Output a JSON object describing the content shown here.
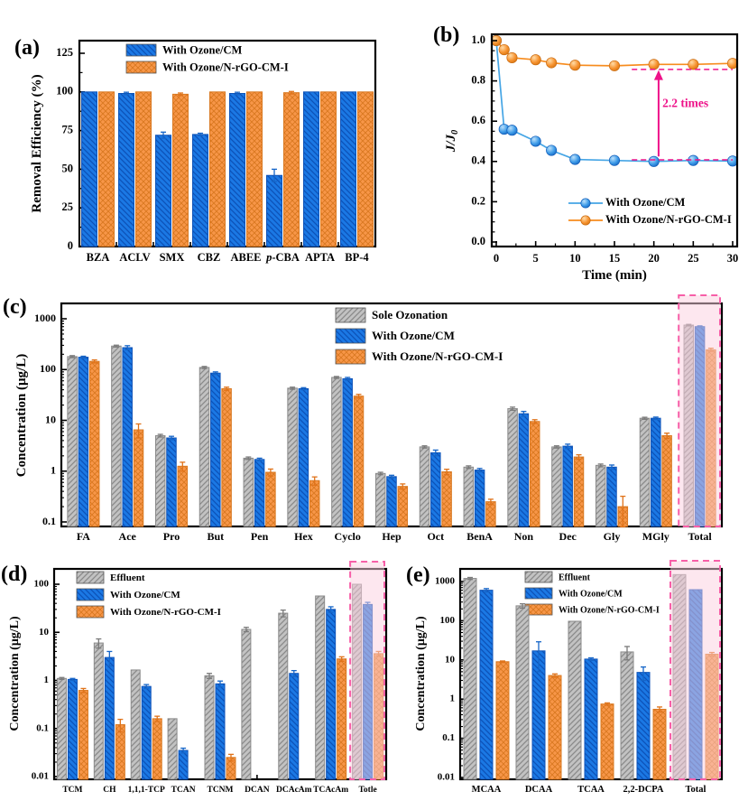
{
  "figure": {
    "colors": {
      "blue": "#1B78E4",
      "blue_hatch": "#0C52B8",
      "blue_line": "#45A5E5",
      "orange": "#F79648",
      "orange_hatch": "#D97820",
      "orange_line": "#F78C1E",
      "gray": "#C2C2C2",
      "gray_hatch": "#8A8A8A",
      "magenta": "#EE1289",
      "highlight_fill": "#FBCFE0",
      "highlight_border": "#F75FA8",
      "axis": "#000000"
    }
  },
  "chart_data": [
    {
      "panel": "a",
      "label": "(a)",
      "type": "bar",
      "yscale": "linear",
      "ylabel": "Removal Efficiency (%)",
      "yticks": [
        0,
        25,
        50,
        75,
        100,
        125
      ],
      "ytick_labels": [
        "0",
        "25",
        "50",
        "75",
        "100",
        "125"
      ],
      "ylim": [
        0,
        133
      ],
      "categories": [
        "BZA",
        "ACLV",
        "SMX",
        "CBZ",
        "ABEE",
        "p-CBA",
        "APTA",
        "BP-4"
      ],
      "series": [
        {
          "name": "With Ozone/CM",
          "color_key": "blue",
          "values": [
            100,
            99,
            72,
            72.5,
            99,
            46,
            100,
            100
          ],
          "errors": [
            0,
            0.8,
            2,
            0.8,
            0.8,
            4,
            0,
            0
          ]
        },
        {
          "name": "With Ozone/N-rGO-CM-I",
          "color_key": "orange",
          "values": [
            100,
            100,
            98.5,
            100,
            100,
            99.5,
            100,
            100
          ],
          "errors": [
            0,
            0,
            0.8,
            0,
            0,
            0.8,
            0,
            0
          ]
        }
      ]
    },
    {
      "panel": "b",
      "label": "(b)",
      "type": "line",
      "xlabel": "Time (min)",
      "ylabel": "J/J0",
      "xticks": [
        0,
        5,
        10,
        15,
        20,
        25,
        30
      ],
      "xtick_labels": [
        "0",
        "5",
        "10",
        "15",
        "20",
        "25",
        "30"
      ],
      "yticks": [
        0.0,
        0.2,
        0.4,
        0.6,
        0.8,
        1.0
      ],
      "ytick_labels": [
        "0.0",
        "0.2",
        "0.4",
        "0.6",
        "0.8",
        "1.0"
      ],
      "x": [
        0,
        1,
        2,
        5,
        7,
        10,
        15,
        20,
        25,
        30
      ],
      "series": [
        {
          "name": "With Ozone/CM",
          "color_key": "blue",
          "y": [
            1.0,
            0.56,
            0.555,
            0.5,
            0.455,
            0.41,
            0.405,
            0.4,
            0.405,
            0.402
          ]
        },
        {
          "name": "With Ozone/N-rGO-CM-I",
          "color_key": "orange",
          "y": [
            1.0,
            0.955,
            0.915,
            0.905,
            0.89,
            0.878,
            0.875,
            0.882,
            0.882,
            0.887
          ]
        }
      ],
      "annotation": {
        "text": "2.2 times",
        "text_t": 24.0,
        "text_j": 0.67,
        "arrow_t": 20.6,
        "arrow_j1": 0.425,
        "arrow_j2": 0.845,
        "dash_top_j": 0.857,
        "dash_bottom_j": 0.408,
        "dash_t1": 17.2,
        "dash_t2": 30
      }
    },
    {
      "panel": "c",
      "label": "(c)",
      "type": "bar",
      "yscale": "log",
      "ylabel": "Concentration (μg/L)",
      "yticks": [
        0.1,
        1,
        10,
        100,
        1000
      ],
      "ytick_labels": [
        "0.1",
        "1",
        "10",
        "100",
        "1000"
      ],
      "categories": [
        "FA",
        "Ace",
        "Pro",
        "But",
        "Pen",
        "Hex",
        "Cyclo",
        "Hep",
        "Oct",
        "BenA",
        "Non",
        "Dec",
        "Gly",
        "MGly",
        "Total"
      ],
      "highlight_category": "Total",
      "series": [
        {
          "name": "Sole Ozonation",
          "color_key": "gray",
          "values": [
            180,
            290,
            5.0,
            110,
            1.8,
            43,
            70,
            0.9,
            3.0,
            1.2,
            17,
            3.0,
            1.3,
            11,
            750
          ],
          "errors": [
            8,
            12,
            0.3,
            5,
            0.1,
            2,
            3,
            0.05,
            0.15,
            0.07,
            1.2,
            0.15,
            0.08,
            0.5,
            25
          ]
        },
        {
          "name": "With Ozone/CM",
          "color_key": "blue",
          "values": [
            175,
            270,
            4.5,
            85,
            1.7,
            42,
            66,
            0.78,
            2.3,
            1.05,
            13.5,
            3.1,
            1.2,
            11,
            700
          ],
          "errors": [
            8,
            25,
            0.35,
            5,
            0.1,
            2,
            4,
            0.05,
            0.3,
            0.08,
            1.5,
            0.3,
            0.12,
            0.6,
            25
          ]
        },
        {
          "name": "With Ozone/N-rGO-CM-I",
          "color_key": "orange",
          "values": [
            145,
            6.5,
            1.25,
            42,
            0.95,
            0.65,
            30,
            0.5,
            0.97,
            0.25,
            9.5,
            1.9,
            0.2,
            5.0,
            245
          ],
          "errors": [
            10,
            2.0,
            0.25,
            3,
            0.15,
            0.12,
            2.5,
            0.06,
            0.12,
            0.03,
            0.8,
            0.2,
            0.12,
            0.6,
            18
          ]
        }
      ]
    },
    {
      "panel": "d",
      "label": "(d)",
      "type": "bar",
      "yscale": "log",
      "ylabel": "Concentration (μg/L)",
      "yticks": [
        0.01,
        0.1,
        1,
        10,
        100
      ],
      "ytick_labels": [
        "0.01",
        "0.1",
        "1",
        "10",
        "100"
      ],
      "categories": [
        "TCM",
        "CH",
        "1,1,1-TCP",
        "TCAN",
        "TCNM",
        "DCAN",
        "DCAcAm",
        "TCAcAm",
        "Totle"
      ],
      "highlight_category": "Totle",
      "series": [
        {
          "name": "Effluent",
          "color_key": "gray",
          "values": [
            1.1,
            6.0,
            1.65,
            0.16,
            1.25,
            11.5,
            25,
            57,
            100
          ],
          "errors": [
            0.05,
            1.3,
            0,
            0,
            0.15,
            1.2,
            4,
            0,
            0
          ]
        },
        {
          "name": "With Ozone/CM",
          "color_key": "blue",
          "values": [
            1.05,
            3.0,
            0.75,
            0.035,
            0.85,
            0,
            1.4,
            30,
            38
          ],
          "errors": [
            0.05,
            1.0,
            0.07,
            0.004,
            0.12,
            0,
            0.2,
            4,
            4
          ]
        },
        {
          "name": "With Ozone/N-rGO-CM-I",
          "color_key": "orange",
          "values": [
            0.62,
            0.12,
            0.16,
            0,
            0.025,
            0,
            0,
            2.8,
            3.6
          ],
          "errors": [
            0.06,
            0.035,
            0.02,
            0,
            0.004,
            0,
            0,
            0.3,
            0.4
          ]
        }
      ]
    },
    {
      "panel": "e",
      "label": "(e)",
      "type": "bar",
      "yscale": "log",
      "ylabel": "Concentration (μg/L)",
      "yticks": [
        0.01,
        0.1,
        1,
        10,
        100,
        1000
      ],
      "ytick_labels": [
        "0.01",
        "0.1",
        "1",
        "10",
        "100",
        "1000"
      ],
      "categories": [
        "MCAA",
        "DCAA",
        "TCAA",
        "2,2-DCPA",
        "Total"
      ],
      "highlight_category": "Total",
      "series": [
        {
          "name": "Effluent",
          "color_key": "gray",
          "values": [
            1200,
            240,
            97,
            16,
            1500
          ],
          "errors": [
            70,
            30,
            0,
            6,
            0
          ]
        },
        {
          "name": "With Ozone/CM",
          "color_key": "blue",
          "values": [
            600,
            17,
            10.5,
            4.8,
            620
          ],
          "errors": [
            60,
            12,
            0.8,
            1.8,
            0
          ]
        },
        {
          "name": "With Ozone/N-rGO-CM-I",
          "color_key": "orange",
          "values": [
            9,
            4.0,
            0.75,
            0.55,
            14
          ],
          "errors": [
            0.4,
            0.4,
            0.05,
            0.08,
            1.5
          ]
        }
      ]
    }
  ]
}
